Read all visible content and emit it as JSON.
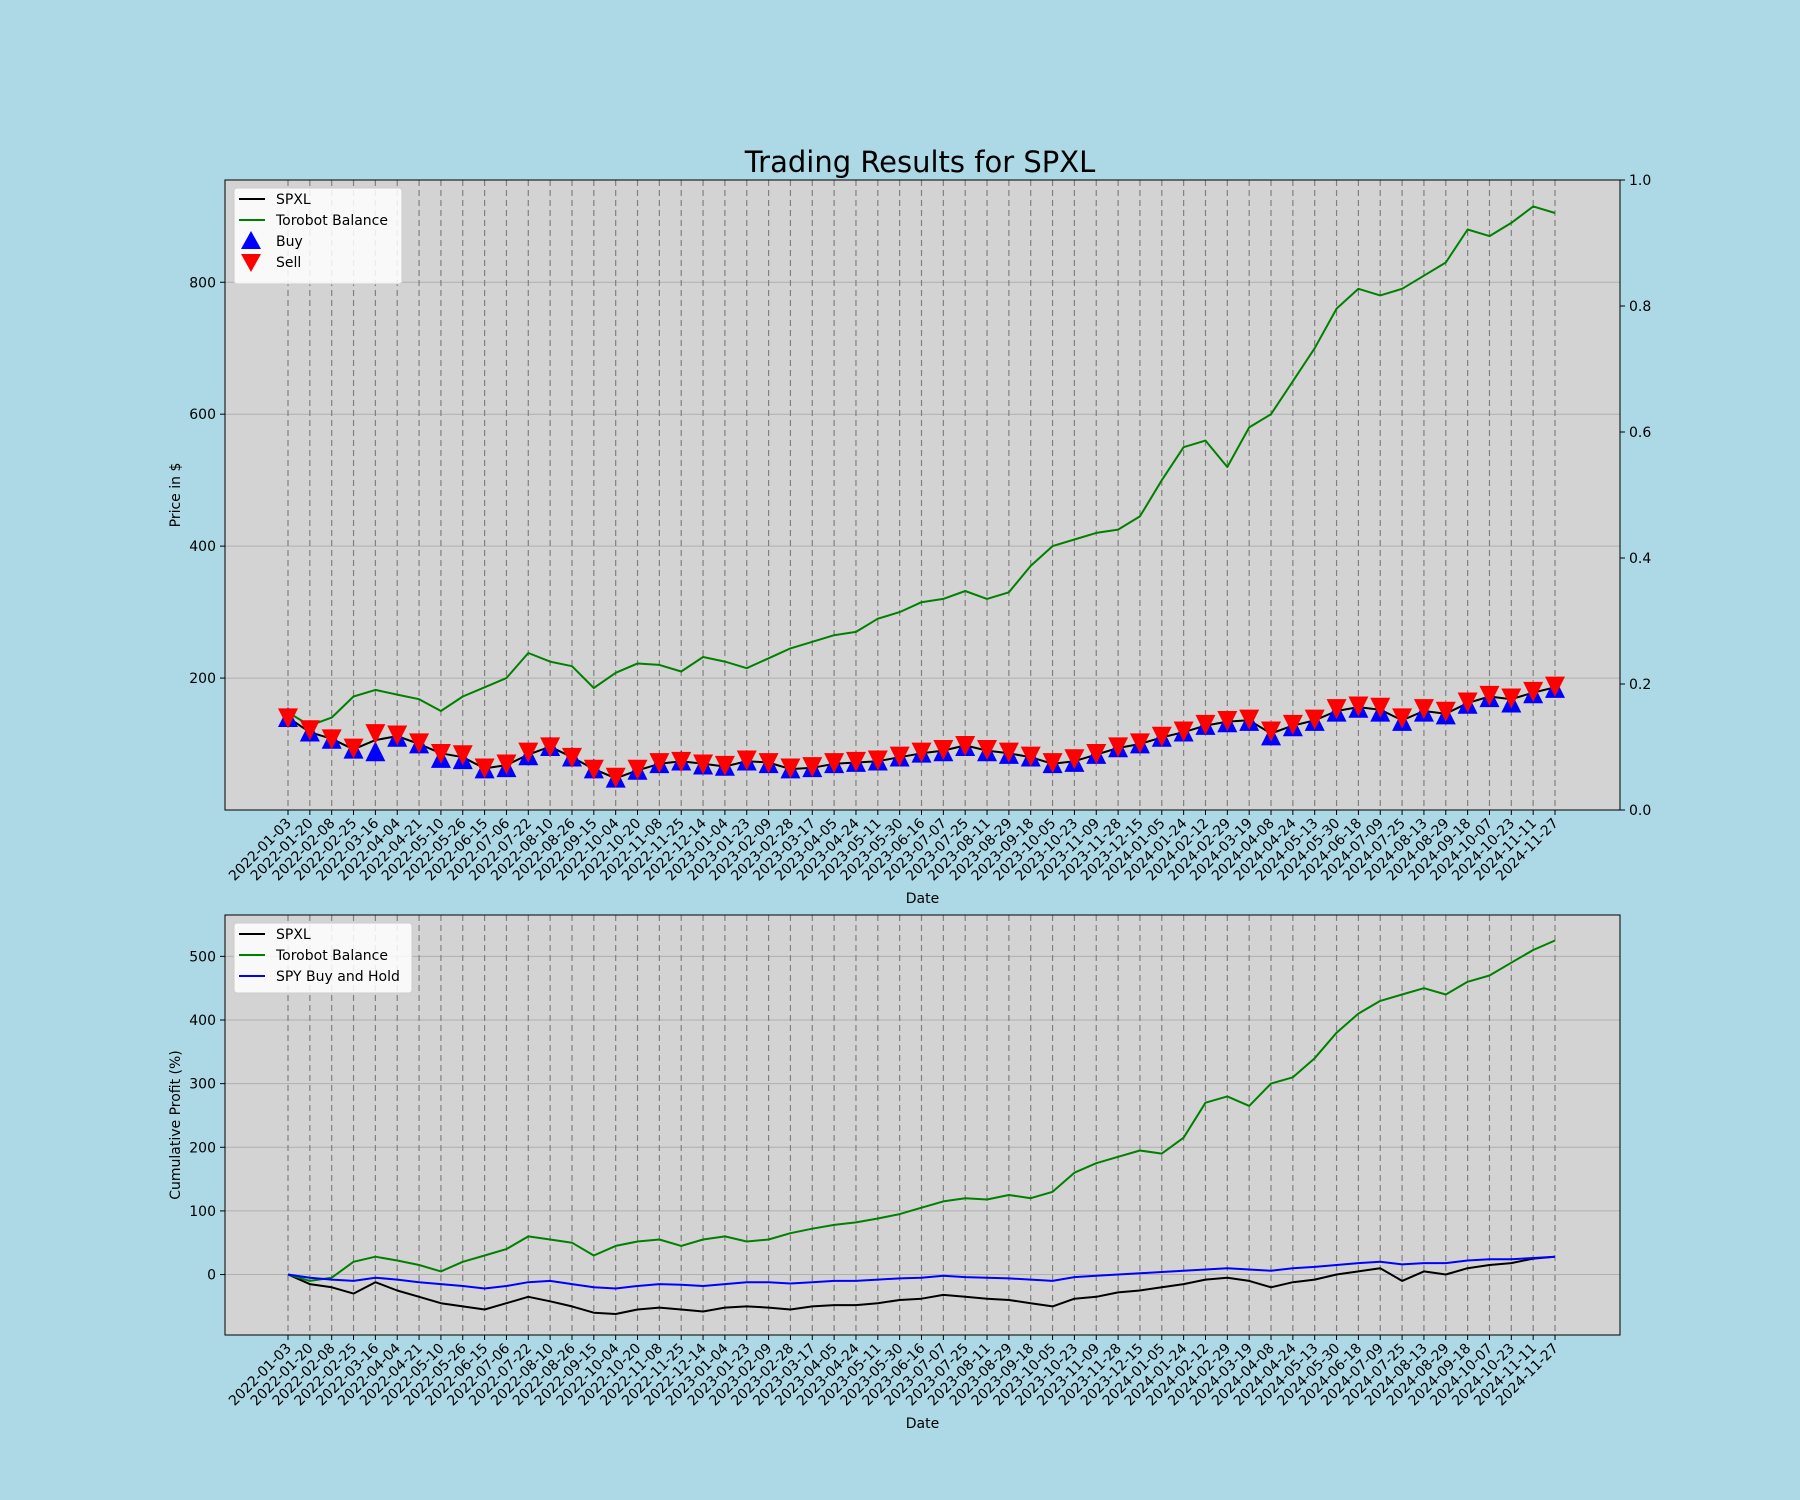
{
  "chart_data": [
    {
      "type": "line",
      "title": "Trading Results for SPXL",
      "xlabel": "Date",
      "ylabel": "Price in $",
      "ylim": [
        0,
        955
      ],
      "yticks": [
        "200",
        "400",
        "600",
        "800"
      ],
      "right_ylim": [
        0,
        1
      ],
      "right_yticks": [
        "0.0",
        "0.2",
        "0.4",
        "0.6",
        "0.8",
        "1.0"
      ],
      "grid": true,
      "legend_position": "upper-left",
      "legend": [
        "SPXL",
        "Torobot Balance",
        "Buy",
        "Sell"
      ],
      "x_dates": [
        "2022-01-03",
        "2022-01-20",
        "2022-02-08",
        "2022-02-25",
        "2022-03-16",
        "2022-04-04",
        "2022-04-21",
        "2022-05-10",
        "2022-05-26",
        "2022-06-15",
        "2022-07-06",
        "2022-07-22",
        "2022-08-10",
        "2022-08-26",
        "2022-09-15",
        "2022-10-04",
        "2022-10-20",
        "2022-11-08",
        "2022-11-25",
        "2022-12-14",
        "2023-01-04",
        "2023-01-23",
        "2023-02-09",
        "2023-02-28",
        "2023-03-17",
        "2023-04-05",
        "2023-04-24",
        "2023-05-11",
        "2023-05-30",
        "2023-06-16",
        "2023-07-07",
        "2023-07-25",
        "2023-08-11",
        "2023-08-29",
        "2023-09-18",
        "2023-10-05",
        "2023-10-23",
        "2023-11-09",
        "2023-11-28",
        "2023-12-15",
        "2024-01-05",
        "2024-01-24",
        "2024-02-12",
        "2024-02-29",
        "2024-03-19",
        "2024-04-08",
        "2024-04-24",
        "2024-05-13",
        "2024-05-30",
        "2024-06-18",
        "2024-07-09",
        "2024-07-25",
        "2024-08-13",
        "2024-08-29",
        "2024-09-18",
        "2024-10-07",
        "2024-10-23",
        "2024-11-11",
        "2024-11-27"
      ],
      "series": [
        {
          "name": "SPXL",
          "color": "#000000",
          "values": [
            140,
            118,
            108,
            92,
            106,
            112,
            100,
            86,
            80,
            63,
            68,
            84,
            96,
            80,
            62,
            48,
            60,
            70,
            74,
            70,
            66,
            74,
            72,
            62,
            64,
            70,
            72,
            74,
            80,
            86,
            90,
            98,
            90,
            86,
            80,
            70,
            74,
            84,
            94,
            100,
            110,
            118,
            128,
            134,
            136,
            116,
            128,
            136,
            150,
            156,
            152,
            136,
            150,
            146,
            162,
            172,
            168,
            178,
            186
          ]
        },
        {
          "name": "Torobot Balance",
          "color": "#008000",
          "values": [
            148,
            128,
            140,
            172,
            182,
            175,
            168,
            150,
            172,
            186,
            200,
            238,
            225,
            218,
            185,
            208,
            222,
            220,
            210,
            232,
            225,
            215,
            230,
            245,
            255,
            265,
            270,
            290,
            300,
            315,
            320,
            332,
            320,
            330,
            370,
            400,
            410,
            420,
            425,
            445,
            500,
            550,
            560,
            520,
            580,
            600,
            650,
            700,
            760,
            790,
            780,
            790,
            810,
            830,
            880,
            870,
            890,
            915,
            905
          ]
        },
        {
          "name": "Buy",
          "color": "#0000ff",
          "values": [
            138,
            116,
            105,
            90,
            86,
            108,
            98,
            76,
            74,
            60,
            62,
            80,
            94,
            78,
            60,
            46,
            58,
            68,
            72,
            66,
            64,
            72,
            68,
            60,
            62,
            68,
            70,
            72,
            78,
            84,
            86,
            94,
            86,
            82,
            78,
            68,
            70,
            82,
            92,
            98,
            108,
            116,
            126,
            130,
            132,
            110,
            124,
            132,
            146,
            152,
            146,
            132,
            146,
            142,
            158,
            168,
            160,
            174,
            182
          ]
        },
        {
          "name": "Sell",
          "color": "#ff0000",
          "values": [
            142,
            124,
            110,
            96,
            118,
            116,
            104,
            88,
            86,
            66,
            72,
            90,
            98,
            82,
            64,
            52,
            64,
            74,
            76,
            72,
            70,
            78,
            74,
            66,
            68,
            74,
            76,
            78,
            84,
            90,
            94,
            100,
            94,
            90,
            84,
            74,
            80,
            88,
            98,
            104,
            114,
            122,
            132,
            138,
            140,
            122,
            132,
            140,
            156,
            160,
            158,
            142,
            156,
            152,
            166,
            176,
            172,
            182,
            190
          ]
        }
      ]
    },
    {
      "type": "line",
      "xlabel": "Date",
      "ylabel": "Cumulative Profit (%)",
      "ylim": [
        -95,
        565
      ],
      "yticks": [
        "0",
        "100",
        "200",
        "300",
        "400",
        "500"
      ],
      "grid": true,
      "legend_position": "upper-left",
      "legend": [
        "SPXL",
        "Torobot Balance",
        "SPY Buy and Hold"
      ],
      "x_dates": [
        "2022-01-03",
        "2022-01-20",
        "2022-02-08",
        "2022-02-25",
        "2022-03-16",
        "2022-04-04",
        "2022-04-21",
        "2022-05-10",
        "2022-05-26",
        "2022-06-15",
        "2022-07-06",
        "2022-07-22",
        "2022-08-10",
        "2022-08-26",
        "2022-09-15",
        "2022-10-04",
        "2022-10-20",
        "2022-11-08",
        "2022-11-25",
        "2022-12-14",
        "2023-01-04",
        "2023-01-23",
        "2023-02-09",
        "2023-02-28",
        "2023-03-17",
        "2023-04-05",
        "2023-04-24",
        "2023-05-11",
        "2023-05-30",
        "2023-06-16",
        "2023-07-07",
        "2023-07-25",
        "2023-08-11",
        "2023-08-29",
        "2023-09-18",
        "2023-10-05",
        "2023-10-23",
        "2023-11-09",
        "2023-11-28",
        "2023-12-15",
        "2024-01-05",
        "2024-01-24",
        "2024-02-12",
        "2024-02-29",
        "2024-03-19",
        "2024-04-08",
        "2024-04-24",
        "2024-05-13",
        "2024-05-30",
        "2024-06-18",
        "2024-07-09",
        "2024-07-25",
        "2024-08-13",
        "2024-08-29",
        "2024-09-18",
        "2024-10-07",
        "2024-10-23",
        "2024-11-11",
        "2024-11-27"
      ],
      "series": [
        {
          "name": "SPXL",
          "color": "#000000",
          "values": [
            0,
            -15,
            -20,
            -30,
            -12,
            -25,
            -35,
            -45,
            -50,
            -55,
            -45,
            -35,
            -42,
            -50,
            -60,
            -62,
            -55,
            -52,
            -55,
            -58,
            -52,
            -50,
            -52,
            -55,
            -50,
            -48,
            -48,
            -45,
            -40,
            -38,
            -32,
            -35,
            -38,
            -40,
            -45,
            -50,
            -38,
            -35,
            -28,
            -25,
            -20,
            -15,
            -8,
            -5,
            -10,
            -20,
            -12,
            -8,
            0,
            5,
            10,
            -10,
            5,
            0,
            10,
            15,
            18,
            25,
            28
          ]
        },
        {
          "name": "Torobot Balance",
          "color": "#008000",
          "values": [
            0,
            -10,
            -5,
            20,
            28,
            22,
            15,
            5,
            20,
            30,
            40,
            60,
            55,
            50,
            30,
            45,
            52,
            55,
            45,
            55,
            60,
            52,
            55,
            65,
            72,
            78,
            82,
            88,
            95,
            105,
            115,
            120,
            118,
            125,
            120,
            130,
            160,
            175,
            185,
            195,
            190,
            215,
            270,
            280,
            265,
            300,
            310,
            340,
            380,
            410,
            430,
            440,
            450,
            440,
            460,
            470,
            490,
            510,
            525
          ]
        },
        {
          "name": "SPY Buy and Hold",
          "color": "#0000ff",
          "values": [
            0,
            -5,
            -8,
            -10,
            -5,
            -8,
            -12,
            -15,
            -18,
            -22,
            -18,
            -12,
            -10,
            -15,
            -20,
            -22,
            -18,
            -15,
            -16,
            -18,
            -15,
            -12,
            -12,
            -14,
            -12,
            -10,
            -10,
            -8,
            -6,
            -5,
            -2,
            -4,
            -5,
            -6,
            -8,
            -10,
            -4,
            -2,
            0,
            2,
            4,
            6,
            8,
            10,
            8,
            6,
            10,
            12,
            15,
            18,
            20,
            16,
            18,
            18,
            22,
            24,
            24,
            26,
            28
          ]
        }
      ]
    }
  ]
}
